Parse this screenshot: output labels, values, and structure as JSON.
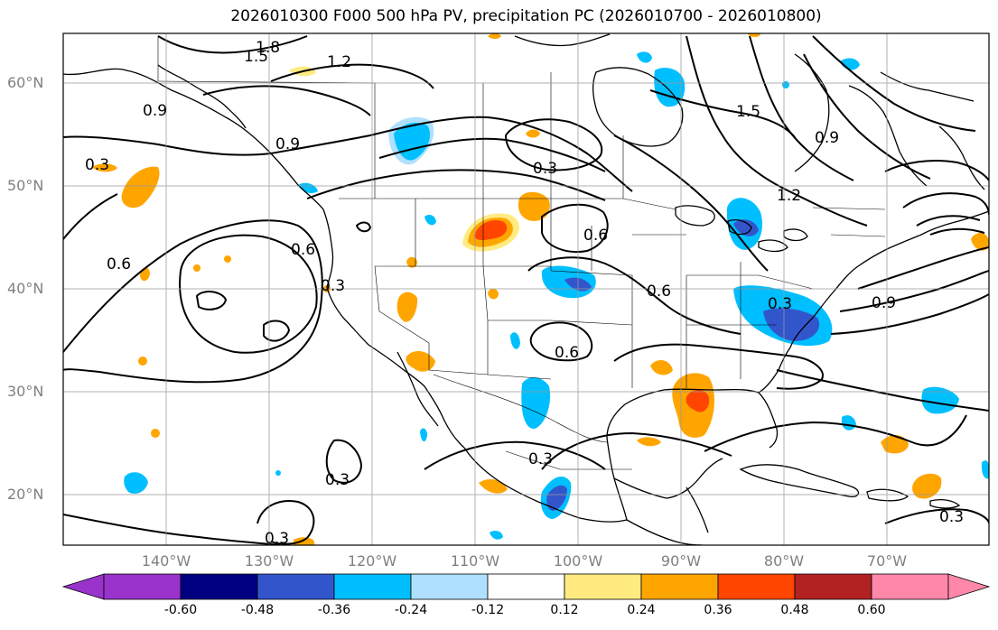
{
  "title": "2026010300 F000 500 hPa PV, precipitation PC (2026010700 - 2026010800)",
  "latitude_labels": [
    "60°N",
    "50°N",
    "40°N",
    "30°N",
    "20°N"
  ],
  "longitude_labels": [
    "140°W",
    "130°W",
    "120°W",
    "110°W",
    "100°W",
    "90°W",
    "80°W",
    "70°W"
  ],
  "contour_labels": [
    "1.8",
    "1.5",
    "1.2",
    "0.9",
    "0.9",
    "0.3",
    "0.6",
    "0.3",
    "0.3",
    "0.3",
    "0.6",
    "0.6",
    "0.6",
    "0.6",
    "0.3",
    "1.5",
    "1.2",
    "0.9",
    "0.9",
    "0.3",
    "0.3",
    "0.3"
  ],
  "colorbar": {
    "tick_labels": [
      "-0.60",
      "-0.48",
      "-0.36",
      "-0.24",
      "-0.12",
      "0.12",
      "0.24",
      "0.36",
      "0.48",
      "0.60"
    ],
    "colors": [
      "#9933cc",
      "#000080",
      "#3355cc",
      "#00bfff",
      "#b0e0ff",
      "#ffffff",
      "#ffeb80",
      "#ffa500",
      "#ff4500",
      "#b22222",
      "#ff88aa"
    ]
  }
}
